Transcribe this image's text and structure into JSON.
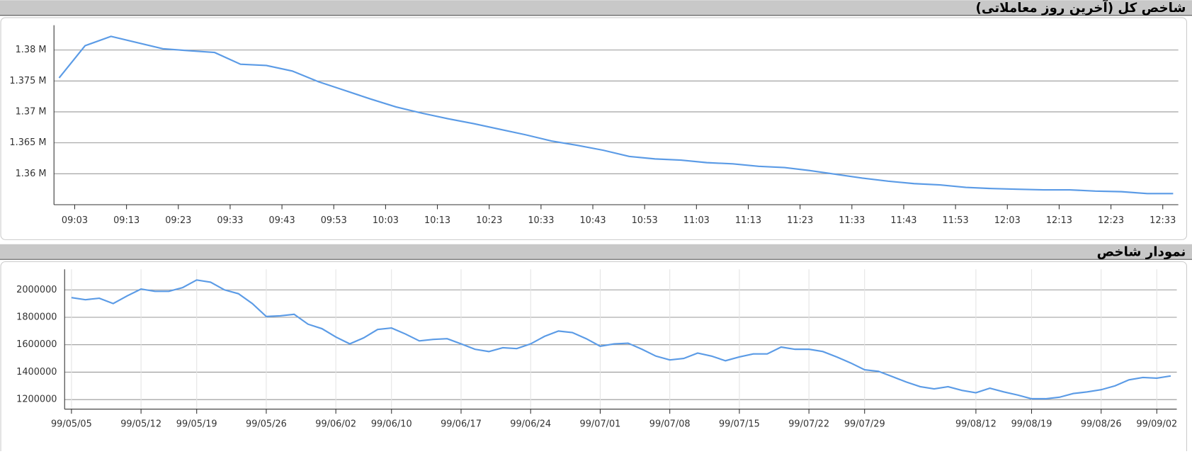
{
  "chart_data": [
    {
      "type": "line",
      "title": "شاخص کل (آخرین روز معاملاتی)",
      "x": [
        "09:00",
        "09:05",
        "09:10",
        "09:20",
        "09:25",
        "09:30",
        "09:35",
        "09:40",
        "09:45",
        "09:50",
        "09:55",
        "10:00",
        "10:05",
        "10:10",
        "10:15",
        "10:20",
        "10:25",
        "10:30",
        "10:35",
        "10:40",
        "10:45",
        "10:50",
        "10:55",
        "11:00",
        "11:05",
        "11:10",
        "11:15",
        "11:20",
        "11:25",
        "11:30",
        "11:35",
        "11:40",
        "11:45",
        "11:50",
        "11:55",
        "12:00",
        "12:05",
        "12:10",
        "12:15",
        "12:20",
        "12:25",
        "12:30",
        "12:35"
      ],
      "series": [
        {
          "color": "#5b9be6",
          "values": [
            1375500,
            1380700,
            1382200,
            1380200,
            1379900,
            1379600,
            1377700,
            1377500,
            1376600,
            1374900,
            1373500,
            1372100,
            1370800,
            1369800,
            1368900,
            1368100,
            1367200,
            1366300,
            1365300,
            1364600,
            1363800,
            1362800,
            1362400,
            1362200,
            1361800,
            1361600,
            1361200,
            1361000,
            1360500,
            1359900,
            1359300,
            1358800,
            1358400,
            1358200,
            1357800,
            1357600,
            1357500,
            1357400,
            1357400,
            1357200,
            1357100,
            1356800,
            1356800
          ]
        }
      ],
      "xlim": [
        "08:59",
        "12:36"
      ],
      "xticks": [
        "09:03",
        "09:13",
        "09:23",
        "09:33",
        "09:43",
        "09:53",
        "10:03",
        "10:13",
        "10:23",
        "10:33",
        "10:43",
        "10:53",
        "11:03",
        "11:13",
        "11:23",
        "11:33",
        "11:43",
        "11:53",
        "12:03",
        "12:13",
        "12:23",
        "12:33"
      ],
      "ylim": [
        1355000,
        1384000
      ],
      "yticks": [
        {
          "value": 1360000,
          "label": "1.36 M"
        },
        {
          "value": 1365000,
          "label": "1.365 M"
        },
        {
          "value": 1370000,
          "label": "1.37 M"
        },
        {
          "value": 1375000,
          "label": "1.375 M"
        },
        {
          "value": 1380000,
          "label": "1.38 M"
        }
      ],
      "grid": true
    },
    {
      "type": "line",
      "title": "نمودار شاخص",
      "categories": [
        "99/05/05",
        null,
        null,
        null,
        null,
        "99/05/12",
        null,
        null,
        null,
        "99/05/19",
        null,
        null,
        null,
        null,
        "99/05/26",
        null,
        null,
        null,
        null,
        "99/06/02",
        null,
        null,
        null,
        "99/06/10",
        null,
        null,
        null,
        null,
        "99/06/17",
        null,
        null,
        null,
        null,
        "99/06/24",
        null,
        null,
        null,
        null,
        "99/07/01",
        null,
        null,
        null,
        null,
        "99/07/08",
        null,
        null,
        null,
        null,
        "99/07/15",
        null,
        null,
        null,
        null,
        "99/07/22",
        null,
        null,
        null,
        "99/07/29",
        null,
        null,
        null,
        null,
        null,
        null,
        null,
        "99/08/12",
        null,
        null,
        null,
        "99/08/19",
        null,
        null,
        null,
        null,
        "99/08/26",
        null,
        null,
        null,
        "99/09/02",
        null
      ],
      "series": [
        {
          "color": "#5b9be6",
          "values": [
            1944000,
            1928000,
            1939000,
            1900000,
            1956000,
            2006000,
            1989000,
            1989000,
            2017000,
            2072000,
            2056000,
            2000000,
            1972000,
            1900000,
            1806000,
            1811000,
            1822000,
            1750000,
            1717000,
            1656000,
            1606000,
            1650000,
            1711000,
            1722000,
            1678000,
            1628000,
            1639000,
            1644000,
            1606000,
            1567000,
            1550000,
            1578000,
            1572000,
            1606000,
            1661000,
            1700000,
            1689000,
            1644000,
            1589000,
            1606000,
            1611000,
            1567000,
            1517000,
            1489000,
            1500000,
            1539000,
            1517000,
            1483000,
            1511000,
            1533000,
            1533000,
            1583000,
            1567000,
            1567000,
            1550000,
            1511000,
            1467000,
            1417000,
            1406000,
            1367000,
            1328000,
            1294000,
            1278000,
            1294000,
            1267000,
            1250000,
            1283000,
            1256000,
            1233000,
            1206000,
            1206000,
            1217000,
            1244000,
            1256000,
            1272000,
            1300000,
            1344000,
            1361000,
            1356000,
            1372000
          ]
        }
      ],
      "ylim": [
        1130000,
        2150000
      ],
      "yticks": [
        1200000,
        1400000,
        1600000,
        1800000,
        2000000
      ],
      "grid": true
    }
  ]
}
